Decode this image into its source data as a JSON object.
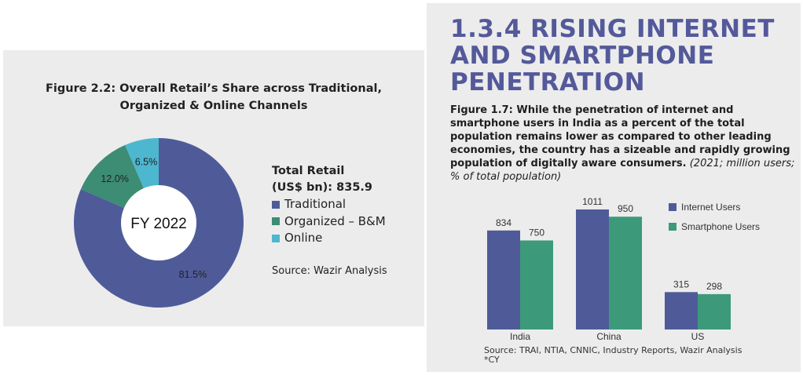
{
  "left_figure": {
    "title_line1": "Figure 2.2: Overall Retail’s Share across Traditional,",
    "title_line2": "Organized & Online Channels",
    "center_label": "FY 2022",
    "legend_title_line1": "Total Retail",
    "legend_title_line2": "(US$ bn): 835.9",
    "source": "Source: Wazir Analysis"
  },
  "right_figure": {
    "section_heading_line1": "1.3.4 RISING INTERNET",
    "section_heading_line2": "AND SMARTPHONE",
    "section_heading_line3": "PENETRATION",
    "caption_bold": "Figure 1.7: While the penetration of internet and smartphone users in India as a percent of the total population remains lower as compared to other leading economies, the country has a sizeable and rapidly growing population of digitally aware consumers.",
    "caption_italic": "(2021; million users; % of total population)",
    "source": "Source: TRAI, NTIA, CNNIC, Industry Reports, Wazir Analysis",
    "footnote": "*CY"
  },
  "colors": {
    "traditional": "#4f5b99",
    "organized": "#3c8d73",
    "online": "#4db7cf",
    "internet": "#4f5b99",
    "smartphone": "#3c9a7a",
    "heading": "#53599a"
  },
  "chart_data": [
    {
      "type": "pie",
      "title": "Figure 2.2: Overall Retail’s Share across Traditional, Organized & Online Channels",
      "center_label": "FY 2022",
      "legend_title": "Total Retail (US$ bn): 835.9",
      "slices": [
        {
          "name": "Traditional",
          "value": 81.5,
          "label": "81.5%"
        },
        {
          "name": "Organized – B&M",
          "value": 12.0,
          "label": "12.0%"
        },
        {
          "name": "Online",
          "value": 6.5,
          "label": "6.5%"
        }
      ]
    },
    {
      "type": "bar",
      "title": "Figure 1.7",
      "categories": [
        "India",
        "China",
        "US"
      ],
      "series": [
        {
          "name": "Internet Users",
          "values": [
            834,
            1011,
            315
          ]
        },
        {
          "name": "Smartphone Users",
          "values": [
            750,
            950,
            298
          ]
        }
      ],
      "ylim": [
        0,
        1100
      ],
      "xlabel": "",
      "ylabel": ""
    }
  ]
}
